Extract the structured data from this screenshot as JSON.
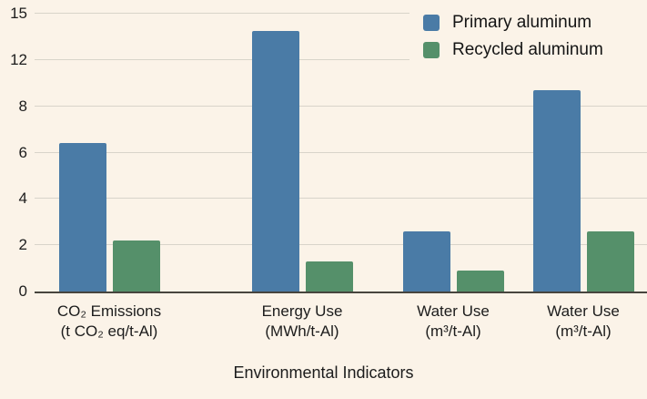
{
  "colors": {
    "background": "#fbf3e8",
    "gridline": "#d8d4ca",
    "axis_line": "#47453e",
    "text": "#1c1c1c",
    "primary_blue": "#4a7ba6",
    "recycled_green": "#55906a"
  },
  "chart_data": {
    "type": "bar",
    "title": "",
    "xlabel": "Environmental Indicators",
    "ylabel": "",
    "grid": true,
    "legend_position": "top-right",
    "y_ticks": [
      0,
      2,
      4,
      6,
      8,
      12,
      15
    ],
    "categories": [
      [
        "CO₂ Emissions",
        "(t CO₂ eq/t-Al)"
      ],
      [
        "Energy Use",
        "(MWh/t-Al)"
      ],
      [
        "Water Use",
        "(m³/t-Al)"
      ],
      [
        "Water Use",
        "(m³/t-Al)"
      ]
    ],
    "series": [
      {
        "name": "Primary aluminum",
        "color": "#4a7ba6",
        "values": [
          6.4,
          13.9,
          2.6,
          9.4
        ]
      },
      {
        "name": "Recycled aluminum",
        "color": "#55906a",
        "values": [
          2.2,
          1.3,
          0.9,
          2.6
        ]
      }
    ]
  }
}
